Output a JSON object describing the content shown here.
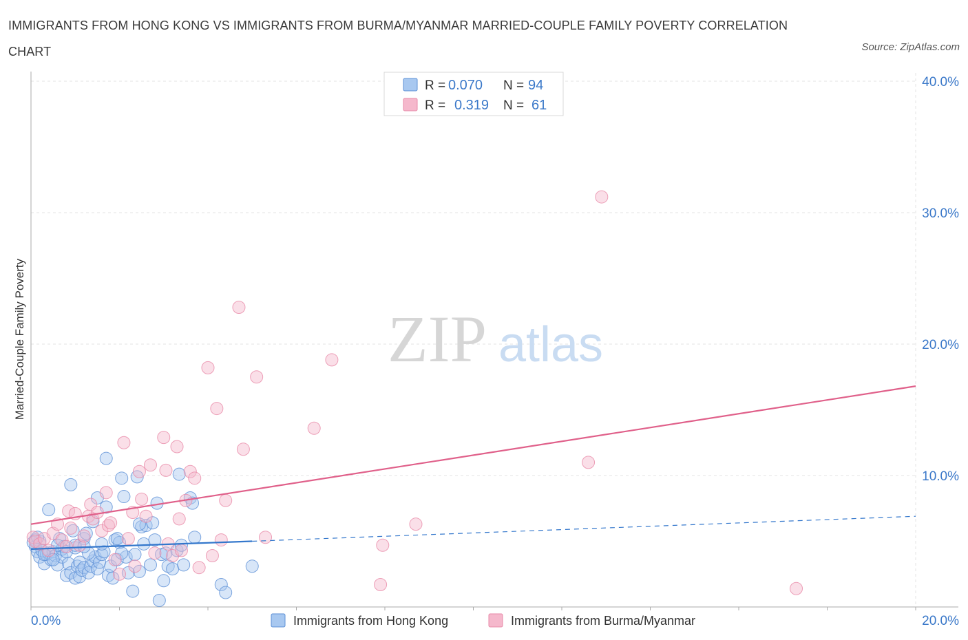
{
  "header": {
    "title": "IMMIGRANTS FROM HONG KONG VS IMMIGRANTS FROM BURMA/MYANMAR MARRIED-COUPLE FAMILY POVERTY CORRELATION CHART",
    "source": "Source: ZipAtlas.com"
  },
  "watermark": {
    "zip": "ZIP",
    "atlas": "atlas"
  },
  "colors": {
    "blue_fill": "#a8c8f0",
    "blue_stroke": "#5b8fd6",
    "blue_line": "#3377cc",
    "pink_fill": "#f5b8cc",
    "pink_stroke": "#e88aa8",
    "pink_line": "#e0608a",
    "tick_label": "#3a78c9"
  },
  "chart_data": {
    "type": "scatter",
    "title": "IMMIGRANTS FROM HONG KONG VS IMMIGRANTS FROM BURMA/MYANMAR MARRIED-COUPLE FAMILY POVERTY CORRELATION CHART",
    "xlabel": "",
    "ylabel": "Married-Couple Family Poverty",
    "xlim": [
      0,
      20
    ],
    "ylim": [
      0,
      40
    ],
    "x_tick_labels": [
      {
        "value": 0,
        "label": "0.0%"
      },
      {
        "value": 20,
        "label": "20.0%"
      }
    ],
    "y_tick_labels": [
      {
        "value": 10,
        "label": "10.0%"
      },
      {
        "value": 20,
        "label": "20.0%"
      },
      {
        "value": 30,
        "label": "30.0%"
      },
      {
        "value": 40,
        "label": "40.0%"
      }
    ],
    "legend_stats": [
      {
        "series": "Immigrants from Hong Kong",
        "r_label": "R =",
        "r_value": "0.070",
        "n_label": "N =",
        "n_value": "94"
      },
      {
        "series": "Immigrants from Burma/Myanmar",
        "r_label": "R =",
        "r_value": "0.319",
        "n_label": "N =",
        "n_value": "61"
      }
    ],
    "series": [
      {
        "name": "Immigrants from Hong Kong",
        "color": "blue",
        "trend": {
          "x0": 0,
          "y0": 4.4,
          "x1": 5.0,
          "y1": 5.0,
          "dashed_to_x": 20,
          "dashed_to_y": 6.9
        },
        "points": [
          [
            0.1,
            5.1
          ],
          [
            0.1,
            4.6
          ],
          [
            0.15,
            4.2
          ],
          [
            0.2,
            5.0
          ],
          [
            0.2,
            3.8
          ],
          [
            0.25,
            4.3
          ],
          [
            0.3,
            3.3
          ],
          [
            0.35,
            4.0
          ],
          [
            0.4,
            7.4
          ],
          [
            0.4,
            4.1
          ],
          [
            0.45,
            3.6
          ],
          [
            0.5,
            4.2
          ],
          [
            0.55,
            3.9
          ],
          [
            0.6,
            3.2
          ],
          [
            0.65,
            5.2
          ],
          [
            0.7,
            3.8
          ],
          [
            0.7,
            4.4
          ],
          [
            0.75,
            4.6
          ],
          [
            0.8,
            2.4
          ],
          [
            0.8,
            4.2
          ],
          [
            0.85,
            3.3
          ],
          [
            0.9,
            9.3
          ],
          [
            0.9,
            2.6
          ],
          [
            0.95,
            5.8
          ],
          [
            1.0,
            4.5
          ],
          [
            1.0,
            2.2
          ],
          [
            1.05,
            3.1
          ],
          [
            1.1,
            3.4
          ],
          [
            1.1,
            2.3
          ],
          [
            1.15,
            2.8
          ],
          [
            1.2,
            3.0
          ],
          [
            1.2,
            5.2
          ],
          [
            1.25,
            5.6
          ],
          [
            1.3,
            2.6
          ],
          [
            1.35,
            3.1
          ],
          [
            1.4,
            6.5
          ],
          [
            1.4,
            3.5
          ],
          [
            1.45,
            3.8
          ],
          [
            1.5,
            8.3
          ],
          [
            1.5,
            2.9
          ],
          [
            1.55,
            3.4
          ],
          [
            1.6,
            4.0
          ],
          [
            1.65,
            4.2
          ],
          [
            1.7,
            11.3
          ],
          [
            1.7,
            7.6
          ],
          [
            1.75,
            2.4
          ],
          [
            1.8,
            3.1
          ],
          [
            1.85,
            2.2
          ],
          [
            1.9,
            5.1
          ],
          [
            1.95,
            3.6
          ],
          [
            2.0,
            4.9
          ],
          [
            2.05,
            9.8
          ],
          [
            2.1,
            8.4
          ],
          [
            2.15,
            3.8
          ],
          [
            2.2,
            2.6
          ],
          [
            2.3,
            1.2
          ],
          [
            2.35,
            4.0
          ],
          [
            2.4,
            9.9
          ],
          [
            2.45,
            2.7
          ],
          [
            2.5,
            6.1
          ],
          [
            2.55,
            4.8
          ],
          [
            2.6,
            6.2
          ],
          [
            2.7,
            3.2
          ],
          [
            2.75,
            6.4
          ],
          [
            2.8,
            5.1
          ],
          [
            2.85,
            7.9
          ],
          [
            2.9,
            0.5
          ],
          [
            2.95,
            4.0
          ],
          [
            3.0,
            2.0
          ],
          [
            3.05,
            4.1
          ],
          [
            3.1,
            3.1
          ],
          [
            3.2,
            2.9
          ],
          [
            3.3,
            4.3
          ],
          [
            3.35,
            10.1
          ],
          [
            3.4,
            4.7
          ],
          [
            3.45,
            3.2
          ],
          [
            3.6,
            8.3
          ],
          [
            3.65,
            7.9
          ],
          [
            3.7,
            5.3
          ],
          [
            4.3,
            1.7
          ],
          [
            4.4,
            1.1
          ],
          [
            5.0,
            3.1
          ],
          [
            0.05,
            4.9
          ],
          [
            0.15,
            5.3
          ],
          [
            0.3,
            4.0
          ],
          [
            0.6,
            4.7
          ],
          [
            1.0,
            4.7
          ],
          [
            1.3,
            4.1
          ],
          [
            1.6,
            4.8
          ],
          [
            1.95,
            5.2
          ],
          [
            2.45,
            6.3
          ],
          [
            2.05,
            4.1
          ],
          [
            1.2,
            4.6
          ],
          [
            0.5,
            3.6
          ]
        ]
      },
      {
        "name": "Immigrants from Burma/Myanmar",
        "color": "pink",
        "trend": {
          "x0": 0,
          "y0": 6.3,
          "x1": 20,
          "y1": 16.8
        },
        "points": [
          [
            0.05,
            5.3
          ],
          [
            0.1,
            5.0
          ],
          [
            0.2,
            4.8
          ],
          [
            0.3,
            5.2
          ],
          [
            0.4,
            4.3
          ],
          [
            0.5,
            5.6
          ],
          [
            0.6,
            6.3
          ],
          [
            0.7,
            5.1
          ],
          [
            0.8,
            4.6
          ],
          [
            0.85,
            7.3
          ],
          [
            0.9,
            6.0
          ],
          [
            1.0,
            7.1
          ],
          [
            1.1,
            4.7
          ],
          [
            1.2,
            5.4
          ],
          [
            1.3,
            6.9
          ],
          [
            1.35,
            7.8
          ],
          [
            1.4,
            6.7
          ],
          [
            1.5,
            7.2
          ],
          [
            1.6,
            5.8
          ],
          [
            1.7,
            8.7
          ],
          [
            1.75,
            6.2
          ],
          [
            1.8,
            6.4
          ],
          [
            1.9,
            3.6
          ],
          [
            2.0,
            2.5
          ],
          [
            2.1,
            12.5
          ],
          [
            2.2,
            5.2
          ],
          [
            2.3,
            7.2
          ],
          [
            2.35,
            3.1
          ],
          [
            2.45,
            10.3
          ],
          [
            2.5,
            8.2
          ],
          [
            2.6,
            6.9
          ],
          [
            2.7,
            10.8
          ],
          [
            2.8,
            4.1
          ],
          [
            3.0,
            12.9
          ],
          [
            3.05,
            10.4
          ],
          [
            3.1,
            4.8
          ],
          [
            3.2,
            3.9
          ],
          [
            3.3,
            12.2
          ],
          [
            3.35,
            6.7
          ],
          [
            3.4,
            4.3
          ],
          [
            3.5,
            8.1
          ],
          [
            3.6,
            10.3
          ],
          [
            3.7,
            9.8
          ],
          [
            3.8,
            3.0
          ],
          [
            4.0,
            18.2
          ],
          [
            4.1,
            3.9
          ],
          [
            4.2,
            15.1
          ],
          [
            4.3,
            5.1
          ],
          [
            4.4,
            8.1
          ],
          [
            4.7,
            22.8
          ],
          [
            4.8,
            12.0
          ],
          [
            5.1,
            17.5
          ],
          [
            5.3,
            5.3
          ],
          [
            6.4,
            13.6
          ],
          [
            6.8,
            18.8
          ],
          [
            7.9,
            1.7
          ],
          [
            7.95,
            4.7
          ],
          [
            8.7,
            6.3
          ],
          [
            12.6,
            11.0
          ],
          [
            12.9,
            31.2
          ],
          [
            17.3,
            1.4
          ]
        ]
      }
    ],
    "bottom_legend": [
      "Immigrants from Hong Kong",
      "Immigrants from Burma/Myanmar"
    ]
  }
}
